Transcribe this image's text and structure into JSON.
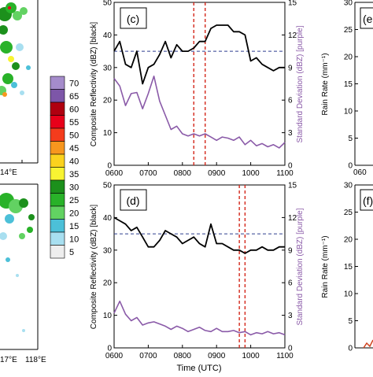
{
  "colorbar": {
    "levels": [
      "70",
      "65",
      "60",
      "55",
      "50",
      "45",
      "40",
      "35",
      "30",
      "25",
      "20",
      "15",
      "10",
      "5"
    ],
    "colors": [
      "#a58ccb",
      "#7d56a8",
      "#b00010",
      "#e8001a",
      "#f43c1c",
      "#f7961e",
      "#fbd21e",
      "#f8f432",
      "#1c901c",
      "#29b229",
      "#62d262",
      "#4cc0d8",
      "#a8dff0",
      "#eeeeee"
    ]
  },
  "maps": {
    "lon_labels": [
      "14°E",
      "17°E",
      "118°E"
    ]
  },
  "panels": {
    "c": {
      "label": "(c)"
    },
    "d": {
      "label": "(d)"
    },
    "e": {
      "label": "(e"
    },
    "f": {
      "label": "(f)"
    }
  },
  "chart_data": [
    {
      "type": "line",
      "panel": "(c)",
      "x": [
        "0600",
        "0610",
        "0620",
        "0630",
        "0640",
        "0650",
        "0700",
        "0710",
        "0720",
        "0730",
        "0740",
        "0750",
        "0800",
        "0810",
        "0820",
        "0830",
        "0840",
        "0850",
        "0900",
        "0910",
        "0920",
        "0930",
        "0940",
        "0950",
        "1000",
        "1010",
        "1020",
        "1030",
        "1040",
        "1050",
        "1100"
      ],
      "series": [
        {
          "name": "Composite Reflectivity",
          "axis": "left",
          "color": "#000000",
          "values": [
            35,
            38,
            31,
            30,
            35,
            25,
            30,
            31,
            34,
            38,
            33,
            37,
            35,
            35,
            36,
            38,
            38,
            42,
            43,
            43,
            43,
            41,
            41,
            40,
            32,
            33,
            31,
            30,
            29,
            30,
            30
          ]
        },
        {
          "name": "Standard Deviation",
          "axis": "right",
          "color": "#8a5aa8",
          "values": [
            8.0,
            7.3,
            5.5,
            6.6,
            6.7,
            5.2,
            6.6,
            8.2,
            5.9,
            4.6,
            3.3,
            3.6,
            2.9,
            2.7,
            2.9,
            2.7,
            2.9,
            2.6,
            2.3,
            2.6,
            2.5,
            2.3,
            2.6,
            1.9,
            2.3,
            1.8,
            2.0,
            1.7,
            1.9,
            1.6,
            2.1
          ]
        }
      ],
      "threshold": 35,
      "vertical_lines": [
        "0820",
        "0840"
      ],
      "ylabel": "Composite Reflectivity (dBZ) [black]",
      "y2label": "Standard Deviation (dBZ) [purple]",
      "ylim": [
        0,
        50
      ],
      "y2lim": [
        0,
        15
      ],
      "yticks": [
        "0",
        "10",
        "20",
        "30",
        "40",
        "50"
      ],
      "y2ticks": [
        "0",
        "3",
        "6",
        "9",
        "12",
        "15"
      ],
      "xticks": [
        "0600",
        "0700",
        "0800",
        "0900",
        "1000",
        "1100"
      ]
    },
    {
      "type": "line",
      "panel": "(d)",
      "x": [
        "0600",
        "0610",
        "0620",
        "0630",
        "0640",
        "0650",
        "0700",
        "0710",
        "0720",
        "0730",
        "0740",
        "0750",
        "0800",
        "0810",
        "0820",
        "0830",
        "0840",
        "0850",
        "0900",
        "0910",
        "0920",
        "0930",
        "0940",
        "0950",
        "1000",
        "1010",
        "1020",
        "1030",
        "1040",
        "1050",
        "1100"
      ],
      "series": [
        {
          "name": "Composite Reflectivity",
          "axis": "left",
          "color": "#000000",
          "values": [
            40,
            39,
            38,
            36,
            37,
            34,
            31,
            31,
            33,
            36,
            35,
            34,
            32,
            33,
            34,
            32,
            31,
            38,
            32,
            32,
            31,
            30,
            30,
            29,
            30,
            30,
            31,
            30,
            30,
            31,
            31
          ]
        },
        {
          "name": "Standard Deviation",
          "axis": "right",
          "color": "#8a5aa8",
          "values": [
            3.2,
            4.3,
            3.1,
            2.5,
            2.8,
            2.1,
            2.3,
            2.4,
            2.2,
            2.0,
            1.7,
            2.0,
            1.8,
            1.5,
            1.7,
            1.9,
            1.6,
            1.5,
            1.8,
            1.5,
            1.5,
            1.6,
            1.4,
            1.5,
            1.2,
            1.4,
            1.3,
            1.5,
            1.3,
            1.4,
            1.2
          ]
        }
      ],
      "threshold": 35,
      "vertical_lines": [
        "0940",
        "0950"
      ],
      "ylabel": "Composite Reflectivity (dBZ) [black]",
      "y2label": "Standard Deviation (dBZ) [purple]",
      "ylim": [
        0,
        50
      ],
      "y2lim": [
        0,
        15
      ],
      "yticks": [
        "0",
        "10",
        "20",
        "30",
        "40",
        "50"
      ],
      "y2ticks": [
        "0",
        "3",
        "6",
        "9",
        "12",
        "15"
      ],
      "xticks": [
        "0600",
        "0700",
        "0800",
        "0900",
        "1000",
        "1100"
      ],
      "xlabel": "Time (UTC)"
    }
  ],
  "right_panels": {
    "e": {
      "ylabel": "Rain Rate (mm⁻¹)",
      "yticks": [
        "0",
        "5",
        "10",
        "15",
        "20",
        "25",
        "30"
      ],
      "xtick": "060"
    },
    "f": {
      "ylabel": "Rain Rate (mm⁻¹)",
      "yticks": [
        "0",
        "5",
        "10",
        "15",
        "20",
        "25",
        "30"
      ]
    }
  }
}
